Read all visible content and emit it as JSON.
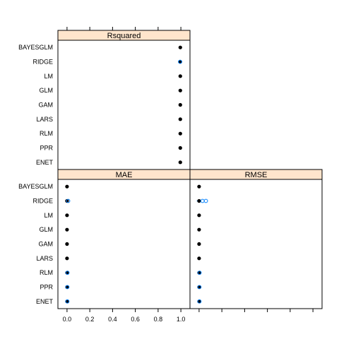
{
  "chart_data": {
    "type": "scatter",
    "models": [
      "BAYESGLM",
      "RIDGE",
      "LM",
      "GLM",
      "GAM",
      "LARS",
      "RLM",
      "PPR",
      "ENET"
    ],
    "xlim": [
      -0.08,
      1.08
    ],
    "x_ticks": [
      0.0,
      0.2,
      0.4,
      0.6,
      0.8,
      1.0
    ],
    "x_tick_labels": [
      "0.0",
      "0.2",
      "0.4",
      "0.6",
      "0.8",
      "1.0"
    ],
    "strip_color": "#ffe5cc",
    "point_color": "#000000",
    "outlier_color": "#0080ff",
    "panels": [
      {
        "name": "Rsquared",
        "values": [
          0.995,
          0.995,
          0.995,
          0.995,
          0.995,
          0.995,
          0.995,
          0.995,
          0.995
        ],
        "spread": [
          0.005,
          0.008,
          0.005,
          0.005,
          0.005,
          0.005,
          0.005,
          0.005,
          0.005
        ],
        "outliers": [
          [],
          [
            0.993
          ],
          [],
          [],
          [],
          [],
          [],
          [],
          []
        ]
      },
      {
        "name": "MAE",
        "values": [
          0.0,
          0.0,
          0.0,
          0.0,
          0.0,
          0.0,
          0.0,
          0.0,
          0.0
        ],
        "spread": [
          0.004,
          0.01,
          0.004,
          0.004,
          0.004,
          0.004,
          0.008,
          0.006,
          0.006
        ],
        "outliers": [
          [],
          [
            0.01
          ],
          [],
          [],
          [],
          [],
          [
            0.004
          ],
          [
            0.003
          ],
          [
            0.003
          ]
        ]
      },
      {
        "name": "RMSE",
        "values": [
          0.0,
          0.0,
          0.0,
          0.0,
          0.0,
          0.0,
          0.0,
          0.0,
          0.0
        ],
        "spread": [
          0.005,
          0.02,
          0.005,
          0.005,
          0.005,
          0.005,
          0.008,
          0.006,
          0.006
        ],
        "outliers": [
          [],
          [
            0.03,
            0.06
          ],
          [],
          [],
          [],
          [],
          [
            0.004
          ],
          [
            0.003
          ],
          [
            0.003
          ]
        ]
      }
    ]
  }
}
